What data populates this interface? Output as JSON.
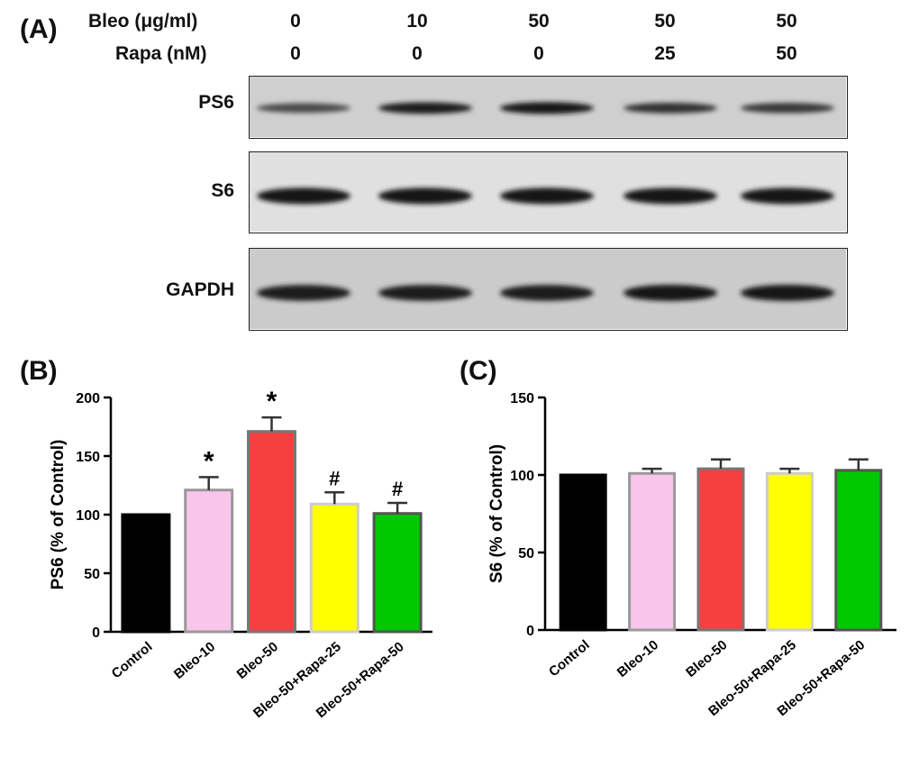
{
  "panel_a": {
    "label": "(A)",
    "conditions": {
      "bleo_label": "Bleo (μg/ml)",
      "rapa_label": "Rapa (nM)",
      "bleo_values": [
        "0",
        "10",
        "50",
        "50",
        "50"
      ],
      "rapa_values": [
        "0",
        "0",
        "0",
        "25",
        "50"
      ]
    },
    "blots": [
      {
        "label": "PS6",
        "band_intensity": [
          0.55,
          0.95,
          1.0,
          0.75,
          0.7
        ],
        "bg": "#cfcfcf"
      },
      {
        "label": "S6",
        "band_intensity": [
          1.0,
          1.0,
          1.0,
          1.0,
          1.0
        ],
        "bg": "#e0e0e0"
      },
      {
        "label": "GAPDH",
        "band_intensity": [
          0.95,
          0.95,
          0.95,
          1.0,
          1.0
        ],
        "bg": "#cbcbcb"
      }
    ]
  },
  "chart_data": [
    {
      "panel": "(B)",
      "type": "bar",
      "categories": [
        "Control",
        "Bleo-10",
        "Bleo-50",
        "Bleo-50+Rapa-25",
        "Bleo-50+Rapa-50"
      ],
      "values": [
        100,
        121,
        171,
        109,
        101
      ],
      "errors": [
        0,
        11,
        12,
        10,
        9
      ],
      "annotations": [
        "",
        "*",
        "*",
        "#",
        "#"
      ],
      "colors": [
        "#000000",
        "#f7c6ea",
        "#f5403f",
        "#ffff00",
        "#00c800"
      ],
      "edge_colors": [
        "#000000",
        "#999999",
        "#777777",
        "#cccccc",
        "#555555"
      ],
      "ylabel": "PS6 (% of Control)",
      "ylim": [
        0,
        200
      ],
      "yticks": [
        0,
        50,
        100,
        150,
        200
      ],
      "grid": false
    },
    {
      "panel": "(C)",
      "type": "bar",
      "categories": [
        "Control",
        "Bleo-10",
        "Bleo-50",
        "Bleo-50+Rapa-25",
        "Bleo-50+Rapa-50"
      ],
      "values": [
        100,
        101,
        104,
        101,
        103
      ],
      "errors": [
        0,
        3,
        6,
        3,
        7
      ],
      "annotations": [
        "",
        "",
        "",
        "",
        ""
      ],
      "colors": [
        "#000000",
        "#f7c6ea",
        "#f5403f",
        "#ffff00",
        "#00c800"
      ],
      "edge_colors": [
        "#000000",
        "#999999",
        "#777777",
        "#cccccc",
        "#555555"
      ],
      "ylabel": "S6 (% of Control)",
      "ylim": [
        0,
        150
      ],
      "yticks": [
        0,
        50,
        100,
        150
      ],
      "grid": false
    }
  ]
}
